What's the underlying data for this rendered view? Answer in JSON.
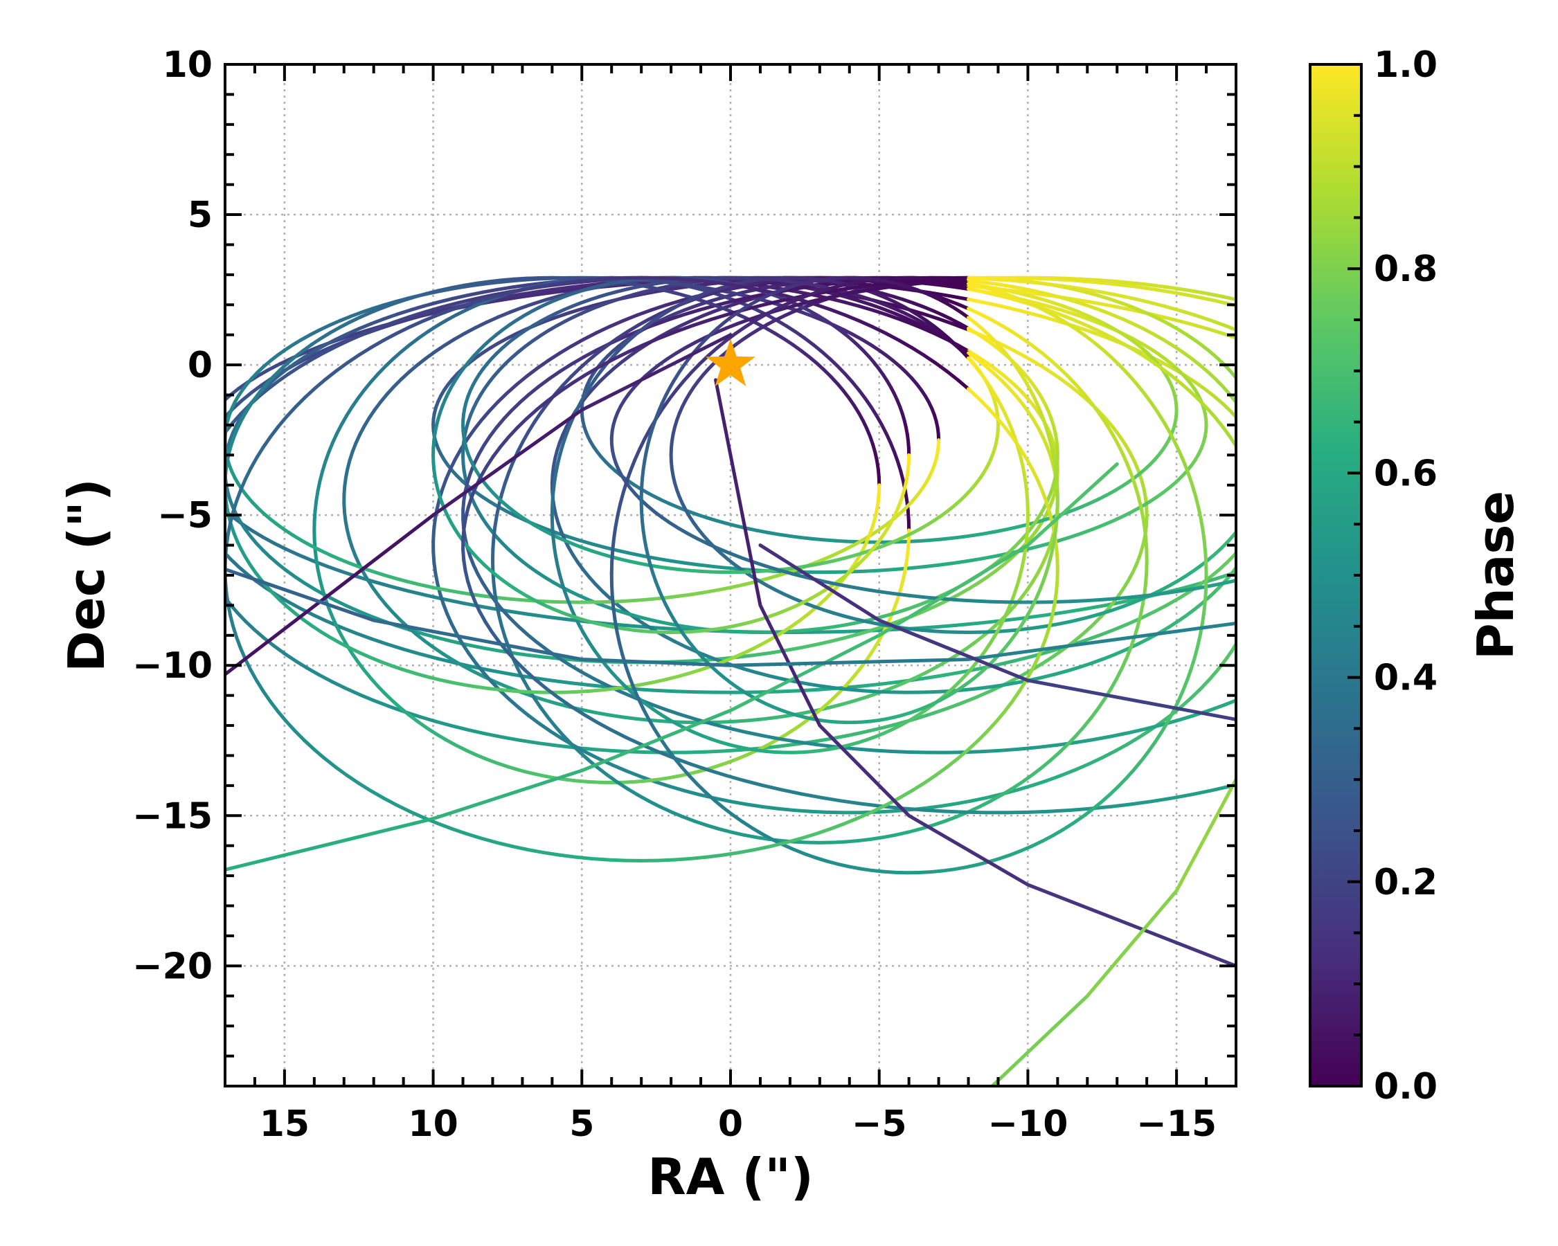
{
  "chart_data": {
    "type": "line",
    "title": "",
    "xlabel": "RA (\")",
    "ylabel": "Dec (\")",
    "xlim": [
      17,
      -17
    ],
    "ylim": [
      -24,
      10
    ],
    "x_ticks": [
      15,
      10,
      5,
      0,
      -5,
      -10,
      -15
    ],
    "x_tick_labels": [
      "15",
      "10",
      "5",
      "0",
      "−5",
      "−10",
      "−15"
    ],
    "y_ticks": [
      10,
      5,
      0,
      -5,
      -10,
      -15,
      -20
    ],
    "y_tick_labels": [
      "10",
      "5",
      "0",
      "−5",
      "−10",
      "−15",
      "−20"
    ],
    "grid": true,
    "colorbar": {
      "label": "Phase",
      "colormap": "viridis",
      "range": [
        0,
        1
      ],
      "ticks": [
        0.0,
        0.2,
        0.4,
        0.6,
        0.8,
        1.0
      ],
      "tick_labels": [
        "0.0",
        "0.2",
        "0.4",
        "0.6",
        "0.8",
        "1.0"
      ]
    },
    "marker": {
      "name": "host star",
      "ra": 0,
      "dec": 0,
      "color": "#FFA500",
      "symbol": "star"
    },
    "common_point": {
      "ra": -8,
      "dec": 2.6
    },
    "orbits_ellipse": [
      [
        -2,
        -3,
        20,
        5.9
      ],
      [
        0,
        -4,
        18,
        6.9
      ],
      [
        2,
        -5,
        16,
        7.9
      ],
      [
        3,
        -3.5,
        14,
        6.4
      ],
      [
        -3,
        -2,
        13,
        4.9
      ],
      [
        -5,
        -1.5,
        10,
        4.4
      ],
      [
        1,
        -4.5,
        12,
        7.4
      ],
      [
        -4,
        -6,
        14,
        8.9
      ],
      [
        4,
        -5.5,
        10,
        8.4
      ],
      [
        -6,
        -4,
        12,
        6.9
      ],
      [
        -1,
        -3,
        10,
        5.9
      ],
      [
        5,
        -2.5,
        12,
        5.4
      ],
      [
        -7,
        -5,
        16,
        7.9
      ],
      [
        -3,
        -6.5,
        11,
        9.4
      ],
      [
        6,
        -4,
        11,
        6.9
      ],
      [
        -8,
        -3,
        10,
        5.9
      ],
      [
        0,
        -2,
        9,
        4.9
      ],
      [
        -2,
        -5,
        8,
        7.9
      ],
      [
        2,
        -3,
        8,
        5.9
      ],
      [
        -9,
        -6,
        18,
        8.9
      ],
      [
        -10,
        -2.5,
        14,
        5.4
      ],
      [
        -6,
        -7,
        10,
        9.9
      ],
      [
        3,
        -6.8,
        14,
        9.7
      ],
      [
        -4,
        -4.5,
        7,
        7.4
      ]
    ],
    "open_tracks": [
      {
        "phase": [
          0.62,
          0.72
        ],
        "points": [
          [
            17,
            -16.8
          ],
          [
            10,
            -15.1
          ],
          [
            5,
            -13.5
          ],
          [
            0,
            -11.5
          ],
          [
            -5,
            -9
          ],
          [
            -10,
            -6
          ],
          [
            -13,
            -3.3
          ]
        ]
      },
      {
        "phase": [
          0.08,
          0.16
        ],
        "points": [
          [
            0.5,
            -0.5
          ],
          [
            -1,
            -8
          ],
          [
            -3,
            -12
          ],
          [
            -6,
            -15
          ],
          [
            -10,
            -17.3
          ],
          [
            -17,
            -20
          ]
        ]
      },
      {
        "phase": [
          0.78,
          0.84
        ],
        "points": [
          [
            -8.8,
            -24
          ],
          [
            -12,
            -21
          ],
          [
            -15,
            -17.5
          ],
          [
            -17,
            -13.8
          ]
        ]
      },
      {
        "phase": [
          0.04,
          0.1
        ],
        "points": [
          [
            17,
            -10.3
          ],
          [
            10,
            -5
          ],
          [
            5,
            -1.5
          ],
          [
            0,
            1
          ]
        ]
      },
      {
        "phase": [
          0.3,
          0.45
        ],
        "points": [
          [
            17,
            -6.8
          ],
          [
            12,
            -8.5
          ],
          [
            5,
            -9.8
          ],
          [
            0,
            -10
          ],
          [
            -8,
            -9.8
          ],
          [
            -17,
            -8.6
          ]
        ]
      },
      {
        "phase": [
          0.12,
          0.2
        ],
        "points": [
          [
            -1,
            -6
          ],
          [
            -5,
            -8.5
          ],
          [
            -10,
            -10.5
          ],
          [
            -17,
            -11.8
          ]
        ]
      }
    ]
  }
}
